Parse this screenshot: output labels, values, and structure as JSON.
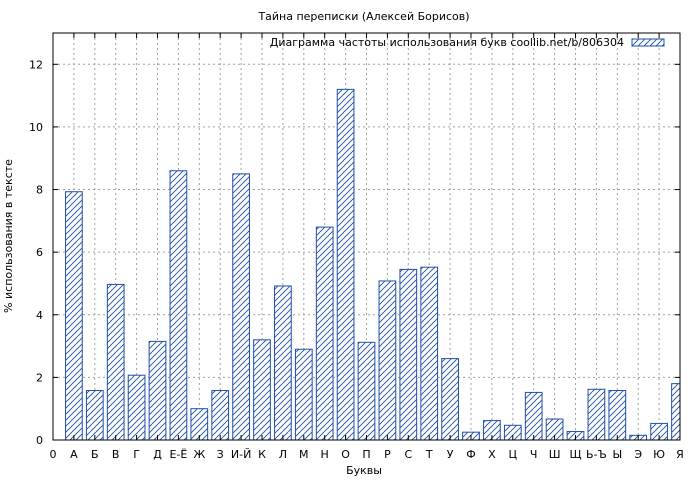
{
  "chart_data": {
    "type": "bar",
    "title": "Тайна переписки (Алексей Борисов)",
    "xlabel": "Буквы",
    "ylabel": "% использования в тексте",
    "legend": {
      "label": "Диаграмма частоты использования букв coollib.net/b/806304",
      "position": "top-right"
    },
    "x_axis_first_tick": "0",
    "categories": [
      "А",
      "Б",
      "В",
      "Г",
      "Д",
      "Е-Ё",
      "Ж",
      "З",
      "И-Й",
      "К",
      "Л",
      "М",
      "Н",
      "О",
      "П",
      "Р",
      "С",
      "Т",
      "У",
      "Ф",
      "Х",
      "Ц",
      "Ч",
      "Ш",
      "Щ",
      "Ь-Ъ",
      "Ы",
      "Э",
      "Ю",
      "Я"
    ],
    "values": [
      7.93,
      1.58,
      4.97,
      2.07,
      3.15,
      8.6,
      1.0,
      1.58,
      8.5,
      3.2,
      4.92,
      2.9,
      6.8,
      11.2,
      3.12,
      5.08,
      5.45,
      5.52,
      2.6,
      0.25,
      0.62,
      0.47,
      1.52,
      0.67,
      0.27,
      1.62,
      1.58,
      0.15,
      0.53,
      1.8
    ],
    "ylim": [
      0,
      13
    ],
    "yticks": [
      0,
      2,
      4,
      6,
      8,
      10,
      12
    ],
    "grid": true,
    "colors": {
      "bar_stroke": "#1f4fa8",
      "grid": "#a0a0a0",
      "axis": "#000000"
    }
  }
}
